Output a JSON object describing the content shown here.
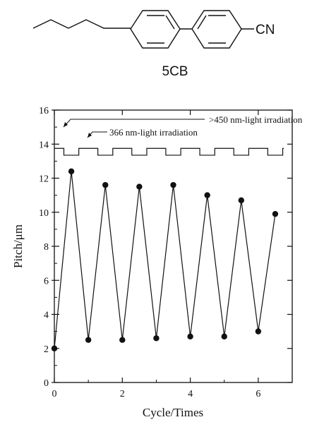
{
  "molecule": {
    "name": "5CB",
    "group": "CN"
  },
  "chart_data": {
    "type": "line",
    "xlabel": "Cycle/Times",
    "ylabel": "Pitch/μm",
    "xlim": [
      0,
      7
    ],
    "ylim": [
      0,
      16
    ],
    "xticks": [
      0,
      2,
      4,
      6
    ],
    "yticks": [
      0,
      2,
      4,
      6,
      8,
      10,
      12,
      14,
      16
    ],
    "x": [
      0,
      0.5,
      1,
      1.5,
      2,
      2.5,
      3,
      3.5,
      4,
      4.5,
      5,
      5.5,
      6,
      6.5
    ],
    "values": [
      2.0,
      12.4,
      2.5,
      11.6,
      2.5,
      11.5,
      2.6,
      11.6,
      2.7,
      11.0,
      2.7,
      10.7,
      3.0,
      9.9
    ],
    "annotations": {
      "visible_label": ">450 nm-light irradiation",
      "uv_label": "366 nm-light irradiation"
    },
    "grid": false,
    "legend": "none"
  }
}
